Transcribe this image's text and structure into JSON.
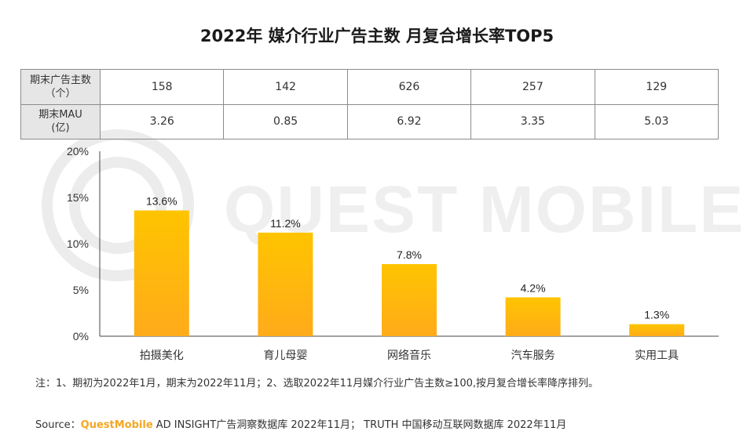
{
  "title": "2022年 媒介行业广告主数 月复合增长率TOP5",
  "watermark": "QUEST MOBILE",
  "table": {
    "rows": [
      {
        "label_line1": "期末广告主数",
        "label_line2": "（个）",
        "values": [
          "158",
          "142",
          "626",
          "257",
          "129"
        ]
      },
      {
        "label_line1": "期末MAU",
        "label_line2": "(亿)",
        "values": [
          "3.26",
          "0.85",
          "6.92",
          "3.35",
          "5.03"
        ]
      }
    ]
  },
  "chart_data": {
    "type": "bar",
    "categories": [
      "拍摄美化",
      "育儿母婴",
      "网络音乐",
      "汽车服务",
      "实用工具"
    ],
    "values": [
      13.6,
      11.2,
      7.8,
      4.2,
      1.3
    ],
    "data_labels": [
      "13.6%",
      "11.2%",
      "7.8%",
      "4.2%",
      "1.3%"
    ],
    "yticks": [
      "0%",
      "5%",
      "10%",
      "15%",
      "20%"
    ],
    "ylim": [
      0,
      20
    ],
    "grid": false,
    "bar_color_top": "#ffc400",
    "bar_color_bottom": "#ffab1a"
  },
  "note": "注：1、期初为2022年1月，期末为2022年11月；2、选取2022年11月媒介行业广告主数≥100,按月复合增长率降序排列。",
  "source": {
    "prefix": "Source：",
    "brand": "QuestMobile",
    "rest": " AD INSIGHT广告洞察数据库 2022年11月；  TRUTH 中国移动互联网数据库 2022年11月"
  }
}
